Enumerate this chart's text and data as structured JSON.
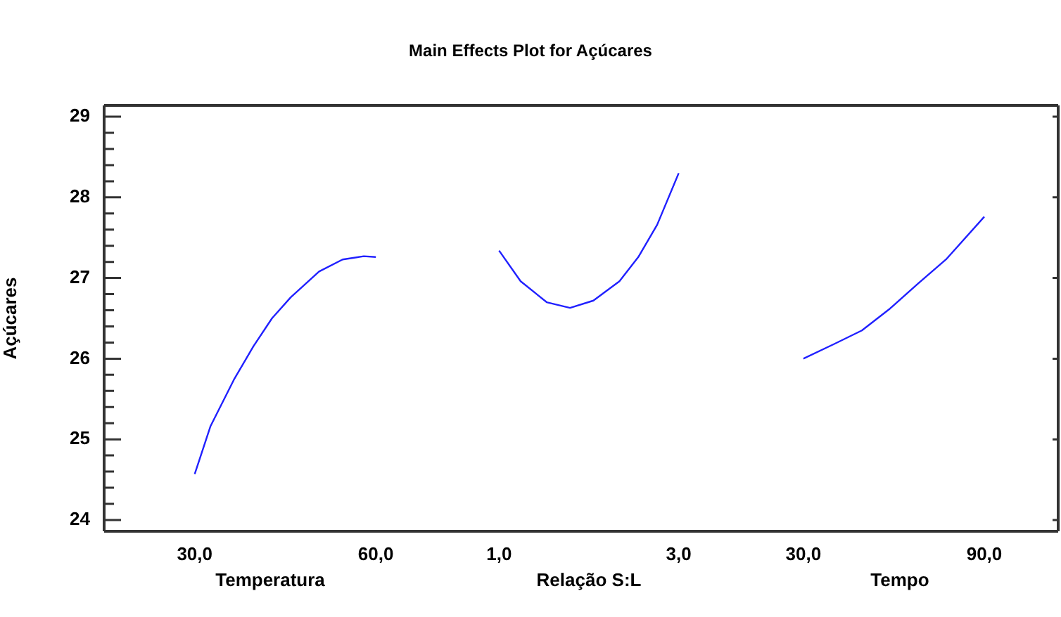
{
  "chart_data": [
    {
      "type": "line",
      "ylabel": "Açúcares",
      "xlabel": "Temperatura",
      "xlim": [
        15,
        70
      ],
      "xticks": [
        {
          "value": 30,
          "label": "30,0"
        },
        {
          "value": 60,
          "label": "60,0"
        }
      ],
      "ylim": [
        23.86,
        29.14
      ],
      "yticks": [
        24,
        {
          "value": 24.2,
          "label": null
        },
        {
          "value": 24.4,
          "label": null
        },
        {
          "value": 24.6,
          "label": null
        },
        {
          "value": 24.8,
          "label": null
        },
        25,
        {
          "value": 25.2,
          "label": null
        },
        {
          "value": 25.4,
          "label": null
        },
        {
          "value": 25.6,
          "label": null
        },
        {
          "value": 25.8,
          "label": null
        },
        26,
        {
          "value": 26.2,
          "label": null
        },
        {
          "value": 26.4,
          "label": null
        },
        {
          "value": 26.6,
          "label": null
        },
        {
          "value": 26.8,
          "label": null
        },
        27,
        {
          "value": 27.2,
          "label": null
        },
        {
          "value": 27.4,
          "label": null
        },
        {
          "value": 27.6,
          "label": null
        },
        {
          "value": 27.8,
          "label": null
        },
        28,
        {
          "value": 28.2,
          "label": null
        },
        {
          "value": 28.4,
          "label": null
        },
        {
          "value": 28.6,
          "label": null
        },
        {
          "value": 28.8,
          "label": null
        },
        29
      ],
      "series": [
        {
          "color": "#2020ff",
          "x": [
            30,
            32.6,
            36.5,
            39.7,
            42.8,
            45.9,
            50.6,
            54.5,
            58,
            60
          ],
          "values": [
            24.57,
            25.16,
            25.74,
            26.15,
            26.5,
            26.76,
            27.08,
            27.23,
            27.27,
            27.26
          ]
        }
      ]
    },
    {
      "type": "line",
      "title": "Main Effects Plot for Açúcares",
      "xlabel": "Relação S:L",
      "tick_labels": "x",
      "xlim": [
        0.3,
        3.7
      ],
      "xticks": [
        {
          "value": 1,
          "label": "1,0"
        },
        {
          "value": 3,
          "label": "3,0"
        }
      ],
      "ylim": [
        23.86,
        29.14
      ],
      "series": [
        {
          "color": "#2020ff",
          "x": [
            1,
            1.24,
            1.53,
            1.79,
            2.05,
            2.34,
            2.55,
            2.76,
            3
          ],
          "values": [
            27.34,
            26.96,
            26.7,
            26.63,
            26.72,
            26.96,
            27.26,
            27.66,
            28.3
          ]
        }
      ]
    },
    {
      "type": "line",
      "xlabel": "Tempo",
      "tick_labels": "x",
      "xlim": [
        9.5,
        114.5
      ],
      "xticks": [
        {
          "value": 30,
          "label": "30,0"
        },
        {
          "value": 90,
          "label": "90,0"
        }
      ],
      "ylim": [
        23.86,
        29.14
      ],
      "yticks": [
        {
          "value": 24,
          "label": null
        },
        {
          "value": 25,
          "label": null
        },
        {
          "value": 26,
          "label": null
        },
        {
          "value": 27,
          "label": null
        },
        {
          "value": 28,
          "label": null
        },
        {
          "value": 29,
          "label": null
        }
      ],
      "series": [
        {
          "color": "#2020ff",
          "x": [
            30,
            40.1,
            49.4,
            58.7,
            68,
            77.3,
            90
          ],
          "values": [
            26,
            26.18,
            26.35,
            26.62,
            26.93,
            27.23,
            27.76
          ]
        }
      ]
    }
  ]
}
